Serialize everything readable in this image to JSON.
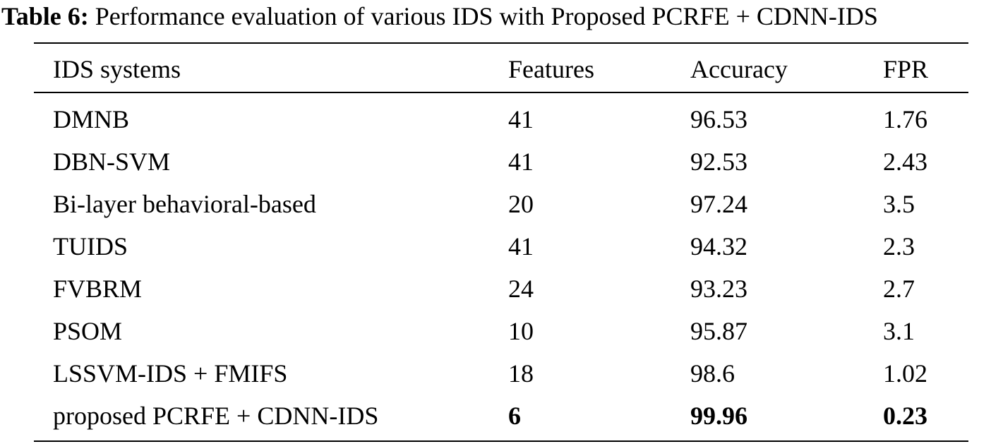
{
  "caption": {
    "label": "Table 6:",
    "text": "Performance evaluation of various IDS with Proposed PCRFE + CDNN-IDS"
  },
  "table": {
    "columns": [
      "IDS systems",
      "Features",
      "Accuracy",
      "FPR"
    ],
    "rows": [
      {
        "system": "DMNB",
        "features": "41",
        "accuracy": "96.53",
        "fpr": "1.76"
      },
      {
        "system": "DBN-SVM",
        "features": "41",
        "accuracy": "92.53",
        "fpr": "2.43"
      },
      {
        "system": "Bi-layer behavioral-based",
        "features": "20",
        "accuracy": "97.24",
        "fpr": "3.5"
      },
      {
        "system": "TUIDS",
        "features": "41",
        "accuracy": "94.32",
        "fpr": "2.3"
      },
      {
        "system": "FVBRM",
        "features": "24",
        "accuracy": "93.23",
        "fpr": "2.7"
      },
      {
        "system": "PSOM",
        "features": "10",
        "accuracy": "95.87",
        "fpr": "3.1"
      },
      {
        "system": "LSSVM-IDS + FMIFS",
        "features": "18",
        "accuracy": "98.6",
        "fpr": "1.02"
      },
      {
        "system": "proposed PCRFE + CDNN-IDS",
        "features": "6",
        "accuracy": "99.96",
        "fpr": "0.23"
      }
    ]
  }
}
